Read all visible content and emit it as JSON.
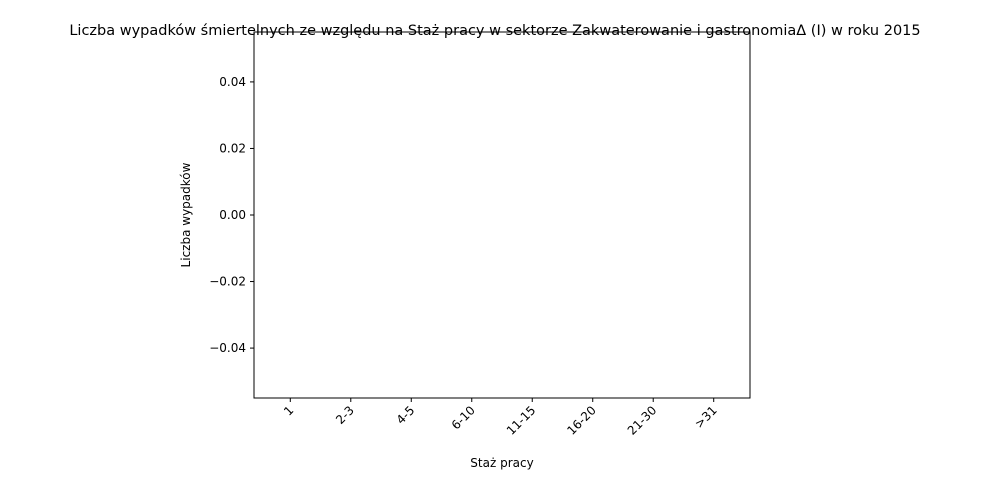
{
  "chart_data": {
    "type": "bar",
    "title": "Liczba wypadków śmiertelnych ze względu na Staż pracy w sektorze Zakwaterowanie i gastronomiaΔ (I) w roku 2015",
    "xlabel": "Staż pracy",
    "ylabel": "Liczba wypadków",
    "categories": [
      "1",
      "2-3",
      "4-5",
      "6-10",
      "11-15",
      "16-20",
      "21-30",
      ">31"
    ],
    "values": [
      0,
      0,
      0,
      0,
      0,
      0,
      0,
      0
    ],
    "ylim": [
      -0.055,
      0.055
    ],
    "yticks": [
      -0.04,
      -0.02,
      0.0,
      0.02,
      0.04
    ],
    "ytick_labels": [
      "−0.04",
      "−0.02",
      "0.00",
      "0.02",
      "0.04"
    ],
    "grid": false,
    "legend": "none",
    "bar_color": "#1f77b4"
  }
}
